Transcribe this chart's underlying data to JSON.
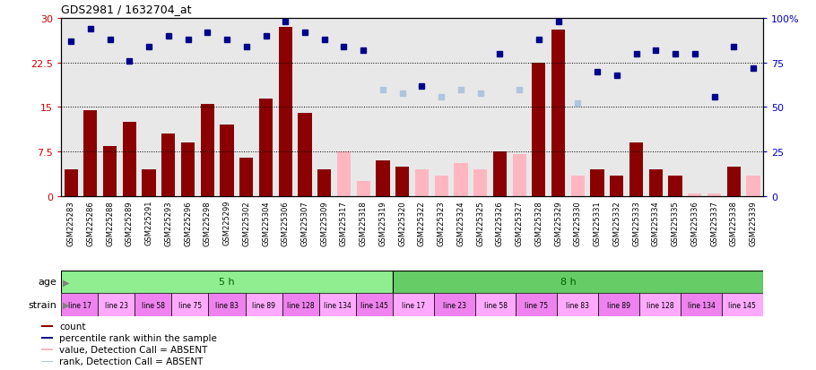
{
  "title": "GDS2981 / 1632704_at",
  "samples": [
    "GSM225283",
    "GSM225286",
    "GSM225288",
    "GSM225289",
    "GSM225291",
    "GSM225293",
    "GSM225296",
    "GSM225298",
    "GSM225299",
    "GSM225302",
    "GSM225304",
    "GSM225306",
    "GSM225307",
    "GSM225309",
    "GSM225317",
    "GSM225318",
    "GSM225319",
    "GSM225320",
    "GSM225322",
    "GSM225323",
    "GSM225324",
    "GSM225325",
    "GSM225326",
    "GSM225327",
    "GSM225328",
    "GSM225329",
    "GSM225330",
    "GSM225331",
    "GSM225332",
    "GSM225333",
    "GSM225334",
    "GSM225335",
    "GSM225336",
    "GSM225337",
    "GSM225338",
    "GSM225339"
  ],
  "count_values": [
    4.5,
    14.5,
    8.5,
    12.5,
    4.5,
    10.5,
    9.0,
    15.5,
    12.0,
    6.5,
    16.5,
    28.5,
    14.0,
    4.5,
    7.5,
    2.5,
    6.0,
    5.0,
    4.5,
    3.5,
    5.5,
    4.5,
    7.5,
    7.0,
    22.5,
    28.0,
    3.5,
    4.5,
    3.5,
    9.0,
    4.5,
    3.5,
    0.5,
    0.5,
    5.0,
    3.5
  ],
  "count_absent": [
    false,
    false,
    false,
    false,
    false,
    false,
    false,
    false,
    false,
    false,
    false,
    false,
    false,
    false,
    true,
    true,
    false,
    false,
    true,
    true,
    true,
    true,
    false,
    true,
    false,
    false,
    true,
    false,
    false,
    false,
    false,
    false,
    true,
    true,
    false,
    true
  ],
  "percentile_values": [
    87,
    94,
    88,
    76,
    84,
    90,
    88,
    92,
    88,
    84,
    90,
    98,
    92,
    88,
    84,
    82,
    60,
    58,
    62,
    56,
    60,
    58,
    80,
    60,
    88,
    98,
    52,
    70,
    68,
    80,
    82,
    80,
    80,
    56,
    84,
    72
  ],
  "percentile_absent": [
    false,
    false,
    false,
    false,
    false,
    false,
    false,
    false,
    false,
    false,
    false,
    false,
    false,
    false,
    false,
    false,
    true,
    true,
    false,
    true,
    true,
    true,
    false,
    true,
    false,
    false,
    true,
    false,
    false,
    false,
    false,
    false,
    false,
    false,
    false,
    false
  ],
  "ylim_left": [
    0,
    30
  ],
  "ylim_right": [
    0,
    100
  ],
  "yticks_left": [
    0,
    7.5,
    15,
    22.5,
    30
  ],
  "yticks_right": [
    0,
    25,
    50,
    75,
    100
  ],
  "bar_color_present": "#8b0000",
  "bar_color_absent": "#ffb6c1",
  "dot_color_present": "#00008b",
  "dot_color_absent": "#b0c4de",
  "background_plot": "#e8e8e8",
  "background_xtick": "#c8c8c8",
  "age_5h_color": "#90ee90",
  "age_8h_color": "#66cc66",
  "strain_odd_color": "#ee82ee",
  "strain_even_color": "#ffaaff",
  "grid_color": "black",
  "ylabel_left_color": "#cc0000",
  "ylabel_right_color": "#0000cc",
  "legend_items": [
    {
      "label": "count",
      "color": "#8b0000"
    },
    {
      "label": "percentile rank within the sample",
      "color": "#00008b"
    },
    {
      "label": "value, Detection Call = ABSENT",
      "color": "#ffb6c1"
    },
    {
      "label": "rank, Detection Call = ABSENT",
      "color": "#b0c4de"
    }
  ],
  "strain_labels_5h": [
    "line 17",
    "line 23",
    "line 58",
    "line 75",
    "line 83",
    "line 89",
    "line 128",
    "line 134",
    "line 145"
  ],
  "strain_colors_5h": [
    "#ee82ee",
    "#ffaaff",
    "#ee82ee",
    "#ffaaff",
    "#ee82ee",
    "#ffaaff",
    "#ee82ee",
    "#ffaaff",
    "#ee82ee"
  ],
  "strain_labels_8h": [
    "line 17",
    "line 23",
    "line 58",
    "line 75",
    "line 83",
    "line 89",
    "line 128",
    "line 134",
    "line 145"
  ],
  "strain_colors_8h": [
    "#ffaaff",
    "#ee82ee",
    "#ffaaff",
    "#ee82ee",
    "#ffaaff",
    "#ee82ee",
    "#ffaaff",
    "#ee82ee",
    "#ffaaff"
  ],
  "n_5h": 17,
  "n_8h": 19
}
